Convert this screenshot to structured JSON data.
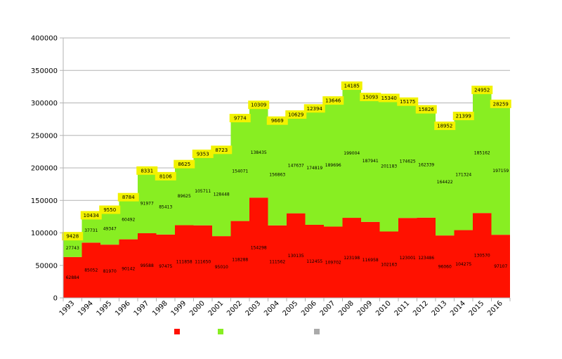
{
  "chart_data": {
    "type": "bar",
    "stacked": true,
    "categories": [
      "1993",
      "1994",
      "1995",
      "1996",
      "1997",
      "1998",
      "1999",
      "2000",
      "2001",
      "2002",
      "2003",
      "2004",
      "2005",
      "2006",
      "2007",
      "2008",
      "2009",
      "2010",
      "2011",
      "2012",
      "2013",
      "2014",
      "2015",
      "2016"
    ],
    "series": [
      {
        "color": "#ff1100",
        "values": [
          62884,
          85052,
          81970,
          90142,
          99588,
          97475,
          111858,
          111650,
          95010,
          118288,
          154298,
          111562,
          130135,
          112455,
          109702,
          123198,
          116958,
          102163,
          123001,
          123486,
          96060,
          104275,
          130570,
          97107
        ]
      },
      {
        "color": "#88ee22",
        "values": [
          27743,
          37731,
          49347,
          60492,
          91977,
          85413,
          89625,
          105711,
          128448,
          154071,
          138435,
          156863,
          147637,
          174819,
          189696,
          199004,
          187941,
          201183,
          174625,
          162339,
          164422,
          171324,
          185162,
          197159
        ]
      },
      {
        "color": "#aaaaaa",
        "values": [
          0,
          0,
          0,
          0,
          0,
          0,
          0,
          0,
          0,
          0,
          0,
          0,
          0,
          0,
          0,
          0,
          0,
          0,
          0,
          0,
          2000,
          3000,
          5000,
          5000
        ]
      }
    ],
    "top_labels": [
      "9428",
      "10434",
      "9550",
      "8784",
      "8331",
      "8106",
      "8625",
      "9353",
      "8723",
      "9774",
      "10309",
      "9669",
      "10629",
      "12394",
      "13646",
      "14185",
      "15093",
      "15340",
      "15175",
      "15826",
      "18952",
      "21399",
      "24952",
      "28259"
    ],
    "yticks": [
      "0",
      "50000",
      "100000",
      "150000",
      "200000",
      "250000",
      "300000",
      "350000",
      "400000"
    ],
    "ylim": [
      0,
      400000
    ],
    "grid": true,
    "legend": "bottom",
    "legend_colors": [
      "#ff1100",
      "#88ee22",
      "#aaaaaa"
    ],
    "label_box_color": "#f2f200"
  }
}
